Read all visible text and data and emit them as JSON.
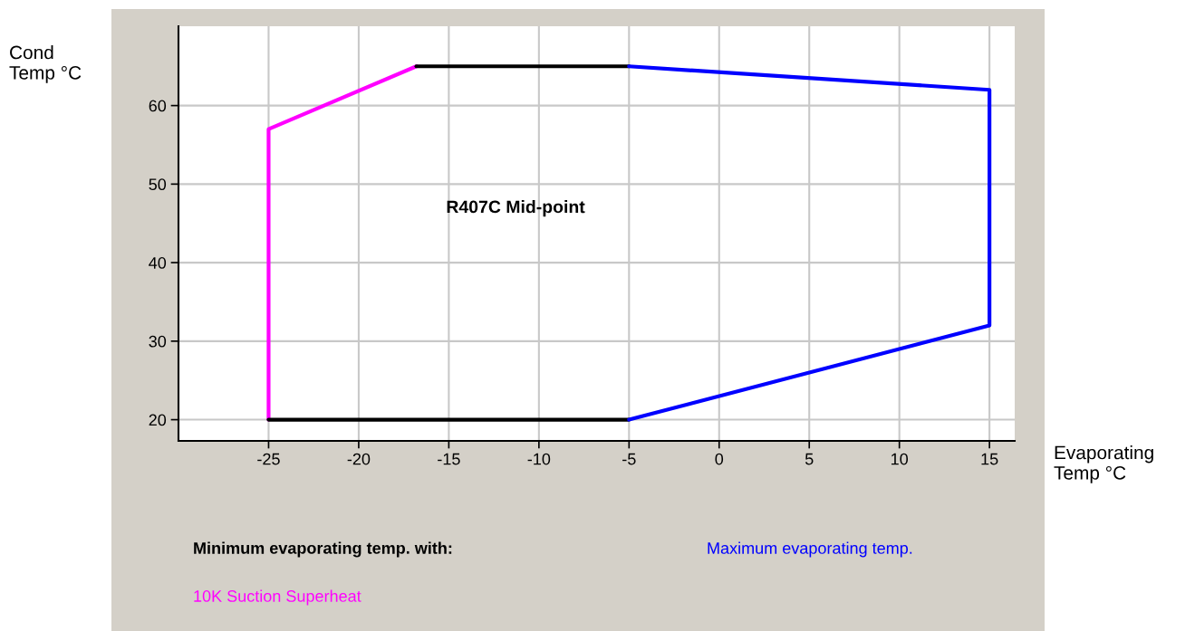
{
  "chart_data": {
    "type": "line",
    "title": "R407C Mid-point",
    "xlabel": "Evaporating Temp °C",
    "ylabel": "Cond Temp °C",
    "annotations": [
      "Minimum evaporating temp. with:"
    ],
    "series": [
      {
        "name": "10K Suction Superheat",
        "color": "#ff00ff",
        "x": [
          -25,
          -25,
          -16.8
        ],
        "values": [
          20,
          57,
          65
        ]
      },
      {
        "color": "#000000",
        "x": [
          -16.8,
          -5
        ],
        "values": [
          65,
          65
        ]
      },
      {
        "color": "#000000",
        "x": [
          -25,
          -5
        ],
        "values": [
          20,
          20
        ]
      },
      {
        "name": "Maximum evaporating temp.",
        "color": "#0000ff",
        "x": [
          -5,
          15,
          15,
          -5
        ],
        "values": [
          65,
          62,
          32,
          20
        ]
      }
    ],
    "xlim": [
      -30,
      16.4
    ],
    "ylim": [
      17.3,
      70.1
    ],
    "xticks": [
      -25,
      -20,
      -15,
      -10,
      -5,
      0,
      5,
      10,
      15
    ],
    "yticks": [
      20,
      30,
      40,
      50,
      60
    ],
    "grid": true,
    "marker": "none",
    "line_style": "solid"
  }
}
